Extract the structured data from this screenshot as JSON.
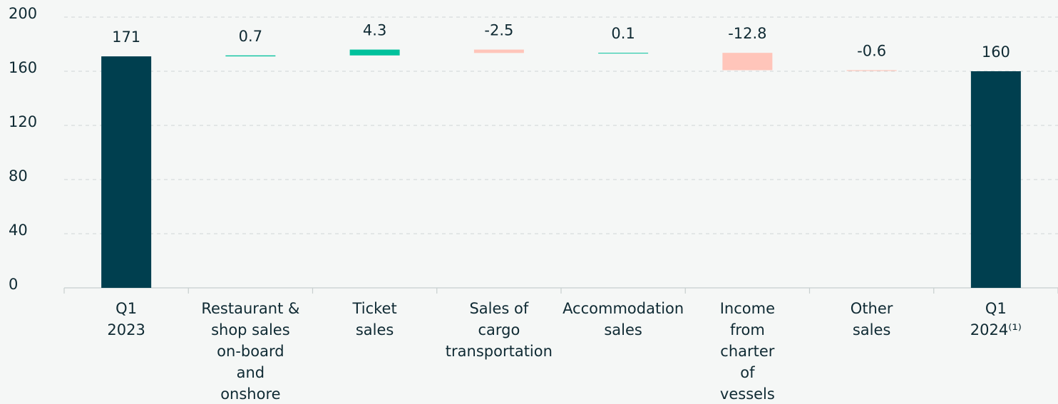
{
  "chart_data": {
    "type": "waterfall",
    "categories": [
      [
        "Q1",
        "2023"
      ],
      [
        "Restaurant &",
        "shop sales",
        "on-board",
        "and",
        "onshore"
      ],
      [
        "Ticket",
        "sales"
      ],
      [
        "Sales of",
        "cargo",
        "transportation"
      ],
      [
        "Accommodation",
        "sales"
      ],
      [
        "Income",
        "from",
        "charter",
        "of",
        "vessels"
      ],
      [
        "Other",
        "sales"
      ],
      [
        "Q1",
        "2024⁽¹⁾"
      ]
    ],
    "values": [
      171,
      0.7,
      4.3,
      -2.5,
      0.1,
      -12.8,
      -0.6,
      160
    ],
    "measure": [
      "total",
      "relative",
      "relative",
      "relative",
      "relative",
      "relative",
      "relative",
      "total"
    ],
    "colors": {
      "total": "#003f4f",
      "increase": "#00c19c",
      "decrease": "#ffc5ba"
    },
    "ylim": [
      0,
      200
    ],
    "yticks": [
      0,
      40,
      80,
      120,
      160,
      200
    ],
    "grid": true
  }
}
